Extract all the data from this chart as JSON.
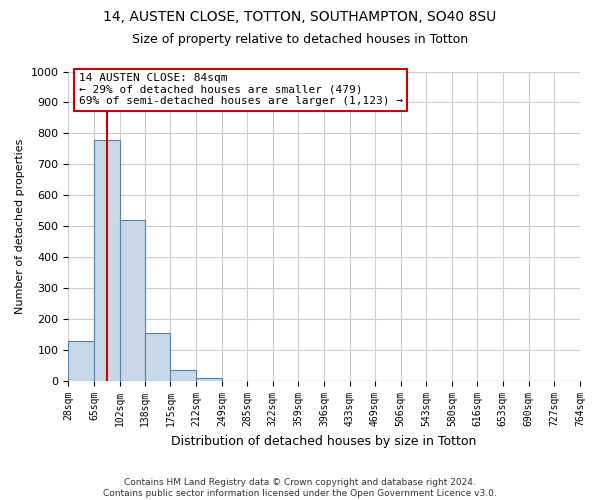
{
  "title_line1": "14, AUSTEN CLOSE, TOTTON, SOUTHAMPTON, SO40 8SU",
  "title_line2": "Size of property relative to detached houses in Totton",
  "xlabel": "Distribution of detached houses by size in Totton",
  "ylabel": "Number of detached properties",
  "footer_line1": "Contains HM Land Registry data © Crown copyright and database right 2024.",
  "footer_line2": "Contains public sector information licensed under the Open Government Licence v3.0.",
  "annotation_line1": "14 AUSTEN CLOSE: 84sqm",
  "annotation_line2": "← 29% of detached houses are smaller (479)",
  "annotation_line3": "69% of semi-detached houses are larger (1,123) →",
  "bar_edges": [
    28,
    65,
    102,
    138,
    175,
    212,
    249,
    285,
    322,
    359,
    396,
    433,
    469,
    506,
    543,
    580,
    616,
    653,
    690,
    727,
    764
  ],
  "bar_heights": [
    130,
    778,
    520,
    157,
    35,
    10,
    0,
    0,
    0,
    0,
    0,
    0,
    0,
    0,
    0,
    0,
    0,
    0,
    0,
    0
  ],
  "bar_color": "#c8d8e8",
  "bar_edge_color": "#5580aa",
  "red_line_x": 84,
  "ylim": [
    0,
    1000
  ],
  "xlim": [
    28,
    764
  ],
  "annotation_box_color": "#ffffff",
  "annotation_box_edge_color": "#cc0000",
  "grid_color": "#cccccc",
  "background_color": "#ffffff",
  "yticks": [
    0,
    100,
    200,
    300,
    400,
    500,
    600,
    700,
    800,
    900,
    1000
  ]
}
